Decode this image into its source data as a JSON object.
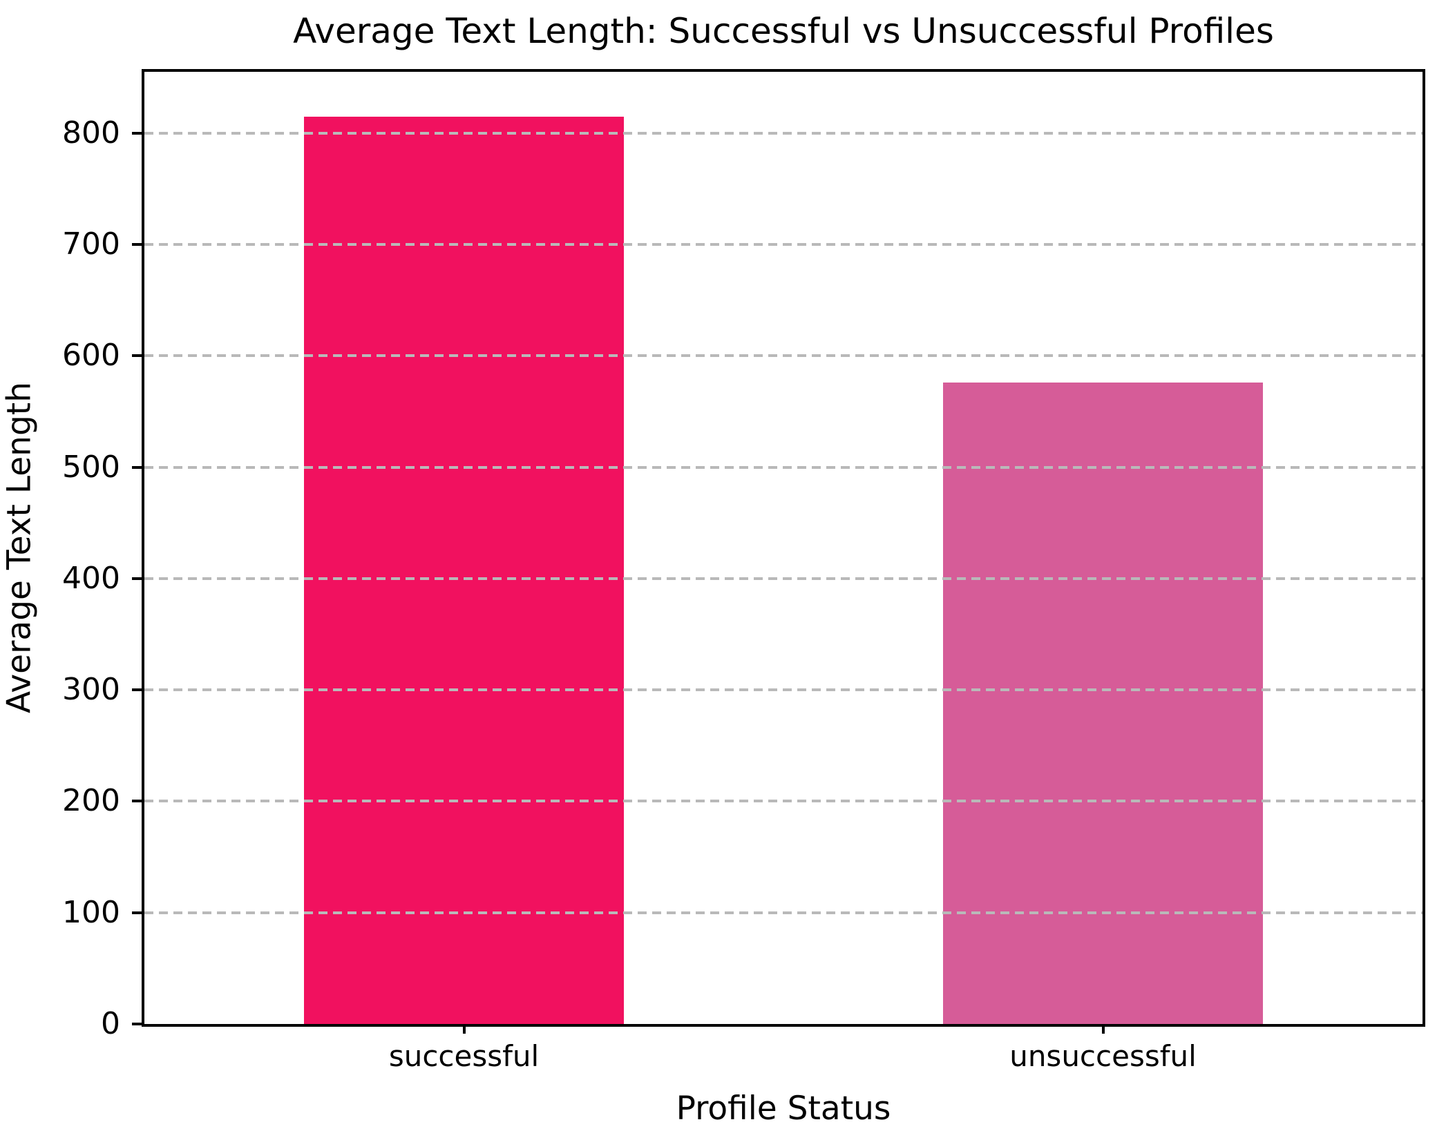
{
  "chart_data": {
    "type": "bar",
    "title": "Average Text Length: Successful vs Unsuccessful Profiles",
    "xlabel": "Profile Status",
    "ylabel": "Average Text Length",
    "categories": [
      "successful",
      "unsuccessful"
    ],
    "values": [
      815,
      576
    ],
    "bar_colors": [
      "#f1115f",
      "#d65c98"
    ],
    "ylim": [
      0,
      855
    ],
    "yticks": [
      0,
      100,
      200,
      300,
      400,
      500,
      600,
      700,
      800
    ],
    "grid": "horizontal dashed, drawn above bars",
    "grid_color": "#b9b9b9",
    "bar_centers_fraction": [
      0.25,
      0.75
    ],
    "bar_width_fraction": 0.25,
    "legend": "none"
  }
}
